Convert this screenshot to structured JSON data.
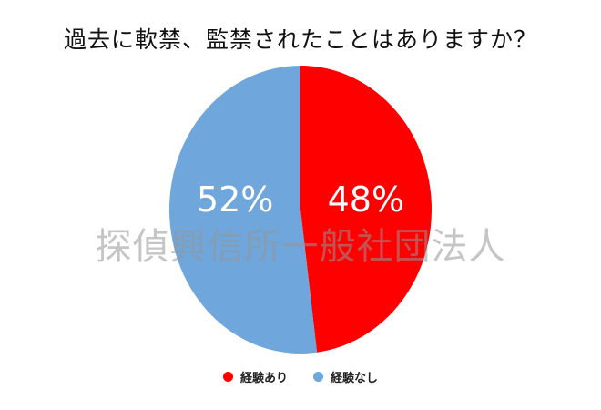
{
  "chart_data": {
    "type": "pie",
    "title": "過去に軟禁、監禁されたことはありますか？",
    "categories": [
      "経験あり",
      "経験なし"
    ],
    "values": [
      48,
      52
    ],
    "labels": [
      "48%",
      "52%"
    ],
    "colors": [
      "#ff0000",
      "#6fa7dc"
    ],
    "start": "12 o'clock, clockwise",
    "legend_position": "bottom"
  },
  "watermark": "探偵興信所一般社団法人",
  "legend": {
    "items": [
      {
        "label": "経験あり",
        "color": "#ff0000"
      },
      {
        "label": "経験なし",
        "color": "#6fa7dc"
      }
    ]
  }
}
